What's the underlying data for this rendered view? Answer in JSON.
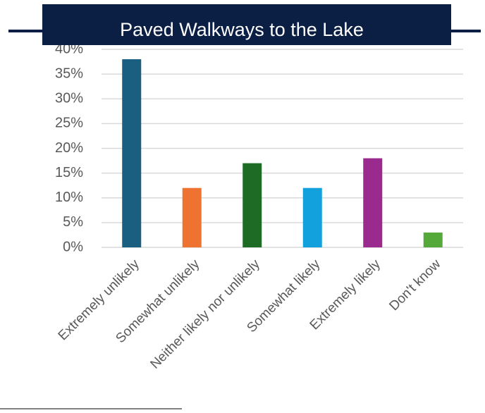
{
  "chart_data": {
    "type": "bar",
    "title": "Paved Walkways to the Lake",
    "categories": [
      "Extremely unlikely",
      "Somewhat unlikely",
      "Neither likely nor unlikely",
      "Somewhat likely",
      "Extremely likely",
      "Don't know"
    ],
    "values": [
      38,
      12,
      17,
      12,
      18,
      3
    ],
    "colors": [
      "#1a5e80",
      "#ee7230",
      "#1e6b26",
      "#12a1dc",
      "#9b2a8e",
      "#55a83a"
    ],
    "ylim": [
      0,
      40
    ],
    "yticks": [
      {
        "value": 0,
        "label": "0%"
      },
      {
        "value": 5,
        "label": "5%"
      },
      {
        "value": 10,
        "label": "10%"
      },
      {
        "value": 15,
        "label": "15%"
      },
      {
        "value": 20,
        "label": "20%"
      },
      {
        "value": 25,
        "label": "25%"
      },
      {
        "value": 30,
        "label": "30%"
      },
      {
        "value": 35,
        "label": "35%"
      },
      {
        "value": 40,
        "label": "40%"
      }
    ],
    "grid": true
  }
}
